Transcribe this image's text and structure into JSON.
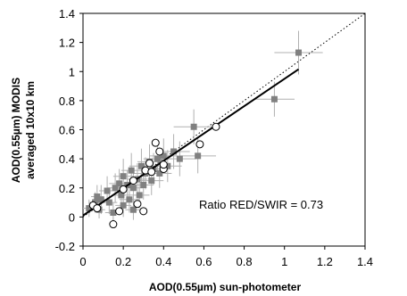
{
  "chart_data": {
    "type": "scatter",
    "title": "",
    "xlabel": "AOD(0.55µm) sun-photometer",
    "ylabel_line1": "AOD(0.55µm) MODIS",
    "ylabel_line2": "averaged 10x10 km",
    "xlim": [
      0,
      1.4
    ],
    "ylim": [
      -0.2,
      1.4
    ],
    "x_ticks": [
      0,
      0.2,
      0.4,
      0.6,
      0.8,
      1,
      1.2,
      1.4
    ],
    "y_ticks": [
      -0.2,
      0,
      0.2,
      0.4,
      0.6,
      0.8,
      1,
      1.2,
      1.4
    ],
    "x_tick_labels": [
      "0",
      "0.2",
      "0.4",
      "0.6",
      "0.8",
      "1",
      "1.2",
      "1.4"
    ],
    "y_tick_labels": [
      "-0.2",
      "0",
      "0.2",
      "0.4",
      "0.6",
      "0.8",
      "1",
      "1.2",
      "1.4"
    ],
    "grid": false,
    "annotation": "Ratio RED/SWIR = 0.73",
    "colors": {
      "squares": "#808080",
      "error_bars": "#b0b0b0",
      "circles": "#000000",
      "fit_line": "#000000"
    },
    "series": [
      {
        "marker": "square",
        "points": [
          {
            "x": 0.03,
            "y": 0.06,
            "xe": 0.03,
            "ye": 0.06
          },
          {
            "x": 0.06,
            "y": 0.1,
            "xe": 0.03,
            "ye": 0.07
          },
          {
            "x": 0.07,
            "y": 0.14,
            "xe": 0.03,
            "ye": 0.08
          },
          {
            "x": 0.08,
            "y": 0.05,
            "xe": 0.03,
            "ye": 0.06
          },
          {
            "x": 0.09,
            "y": 0.12,
            "xe": 0.04,
            "ye": 0.1
          },
          {
            "x": 0.12,
            "y": 0.18,
            "xe": 0.04,
            "ye": 0.1
          },
          {
            "x": 0.13,
            "y": 0.1,
            "xe": 0.04,
            "ye": 0.08
          },
          {
            "x": 0.15,
            "y": 0.03,
            "xe": 0.04,
            "ye": 0.07
          },
          {
            "x": 0.16,
            "y": 0.2,
            "xe": 0.04,
            "ye": 0.1
          },
          {
            "x": 0.18,
            "y": 0.23,
            "xe": 0.05,
            "ye": 0.1
          },
          {
            "x": 0.19,
            "y": 0.15,
            "xe": 0.04,
            "ye": 0.1
          },
          {
            "x": 0.2,
            "y": 0.28,
            "xe": 0.05,
            "ye": 0.12
          },
          {
            "x": 0.2,
            "y": 0.08,
            "xe": 0.04,
            "ye": 0.08
          },
          {
            "x": 0.22,
            "y": 0.22,
            "xe": 0.05,
            "ye": 0.1
          },
          {
            "x": 0.23,
            "y": 0.12,
            "xe": 0.05,
            "ye": 0.09
          },
          {
            "x": 0.24,
            "y": 0.32,
            "xe": 0.05,
            "ye": 0.12
          },
          {
            "x": 0.25,
            "y": 0.2,
            "xe": 0.05,
            "ye": 0.1
          },
          {
            "x": 0.25,
            "y": 0.05,
            "xe": 0.04,
            "ye": 0.07
          },
          {
            "x": 0.27,
            "y": 0.26,
            "xe": 0.05,
            "ye": 0.11
          },
          {
            "x": 0.28,
            "y": 0.15,
            "xe": 0.05,
            "ye": 0.09
          },
          {
            "x": 0.29,
            "y": 0.35,
            "xe": 0.06,
            "ye": 0.12
          },
          {
            "x": 0.3,
            "y": 0.22,
            "xe": 0.05,
            "ye": 0.1
          },
          {
            "x": 0.31,
            "y": 0.3,
            "xe": 0.06,
            "ye": 0.11
          },
          {
            "x": 0.33,
            "y": 0.38,
            "xe": 0.06,
            "ye": 0.12
          },
          {
            "x": 0.34,
            "y": 0.25,
            "xe": 0.06,
            "ye": 0.1
          },
          {
            "x": 0.35,
            "y": 0.33,
            "xe": 0.06,
            "ye": 0.11
          },
          {
            "x": 0.37,
            "y": 0.4,
            "xe": 0.07,
            "ye": 0.12
          },
          {
            "x": 0.38,
            "y": 0.3,
            "xe": 0.06,
            "ye": 0.1
          },
          {
            "x": 0.4,
            "y": 0.42,
            "xe": 0.07,
            "ye": 0.12
          },
          {
            "x": 0.42,
            "y": 0.35,
            "xe": 0.07,
            "ye": 0.11
          },
          {
            "x": 0.45,
            "y": 0.45,
            "xe": 0.08,
            "ye": 0.12
          },
          {
            "x": 0.48,
            "y": 0.4,
            "xe": 0.08,
            "ye": 0.12
          },
          {
            "x": 0.55,
            "y": 0.62,
            "xe": 0.1,
            "ye": 0.12
          },
          {
            "x": 0.57,
            "y": 0.42,
            "xe": 0.09,
            "ye": 0.12
          },
          {
            "x": 0.95,
            "y": 0.81,
            "xe": 0.1,
            "ye": 0.12
          },
          {
            "x": 1.07,
            "y": 1.13,
            "xe": 0.12,
            "ye": 0.15
          }
        ]
      },
      {
        "marker": "circle",
        "points": [
          {
            "x": 0.05,
            "y": 0.08
          },
          {
            "x": 0.07,
            "y": 0.06
          },
          {
            "x": 0.15,
            "y": -0.05
          },
          {
            "x": 0.18,
            "y": 0.04
          },
          {
            "x": 0.2,
            "y": 0.19
          },
          {
            "x": 0.25,
            "y": 0.25
          },
          {
            "x": 0.27,
            "y": 0.09
          },
          {
            "x": 0.3,
            "y": 0.04
          },
          {
            "x": 0.31,
            "y": 0.32
          },
          {
            "x": 0.33,
            "y": 0.37
          },
          {
            "x": 0.34,
            "y": 0.31
          },
          {
            "x": 0.36,
            "y": 0.51
          },
          {
            "x": 0.38,
            "y": 0.45
          },
          {
            "x": 0.4,
            "y": 0.33
          },
          {
            "x": 0.4,
            "y": 0.36
          },
          {
            "x": 0.58,
            "y": 0.5
          },
          {
            "x": 0.66,
            "y": 0.62
          }
        ]
      }
    ],
    "fit_line": {
      "slope": 0.94,
      "intercept": 0.01,
      "x_range": [
        0.0,
        1.07
      ]
    },
    "one_to_one_line": {
      "x_range": [
        0.0,
        1.4
      ]
    }
  }
}
